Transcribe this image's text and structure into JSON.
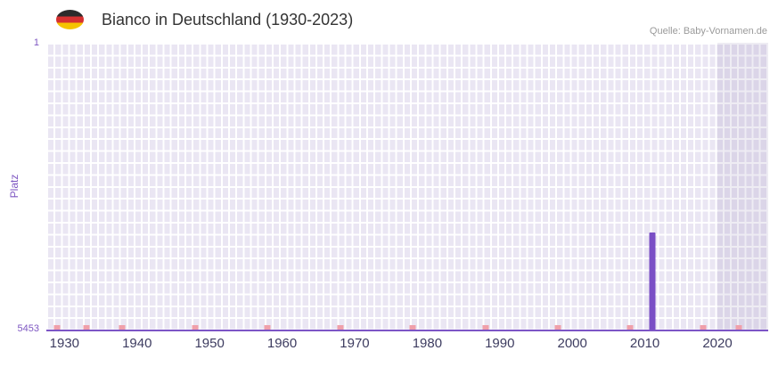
{
  "header": {
    "title": "Bianco in Deutschland (1930-2023)",
    "source": "Quelle: Baby-Vornamen.de",
    "flag_icon": "german-flag",
    "flag_colors": [
      "#2b2b2b",
      "#d63131",
      "#f5c400"
    ]
  },
  "chart_data": {
    "type": "bar",
    "title": "Bianco in Deutschland (1930-2023)",
    "ylabel": "Platz",
    "y_axis": {
      "min": 1,
      "max": 5453,
      "inverted": true,
      "top_label": "1",
      "bottom_label": "5453"
    },
    "x_domain": {
      "min_year": 1927.5,
      "max_year": 2027
    },
    "x_ticks": [
      "1930",
      "1940",
      "1950",
      "1960",
      "1970",
      "1980",
      "1990",
      "2000",
      "2010",
      "2020"
    ],
    "bars": [
      {
        "year": 2011,
        "rank": 3600
      }
    ],
    "low_rank_markers": {
      "approx_rank": 5370,
      "years": [
        1929,
        1933,
        1938,
        1948,
        1958,
        1968,
        1978,
        1988,
        1998,
        2008,
        2018,
        2023
      ]
    },
    "highlight_region": {
      "start_year": 2020
    },
    "grid": true,
    "legend": null,
    "colors": {
      "bar": "#7a4fc5",
      "marker": "#f0a0aa",
      "plot_bg": "#eae6f3",
      "highlight_bg": "#dcd6e9",
      "grid": "#ffffff",
      "axis": "#7c55c6",
      "tick_text": "#3d3c60",
      "axis_label_text": "#7e57c2"
    }
  }
}
